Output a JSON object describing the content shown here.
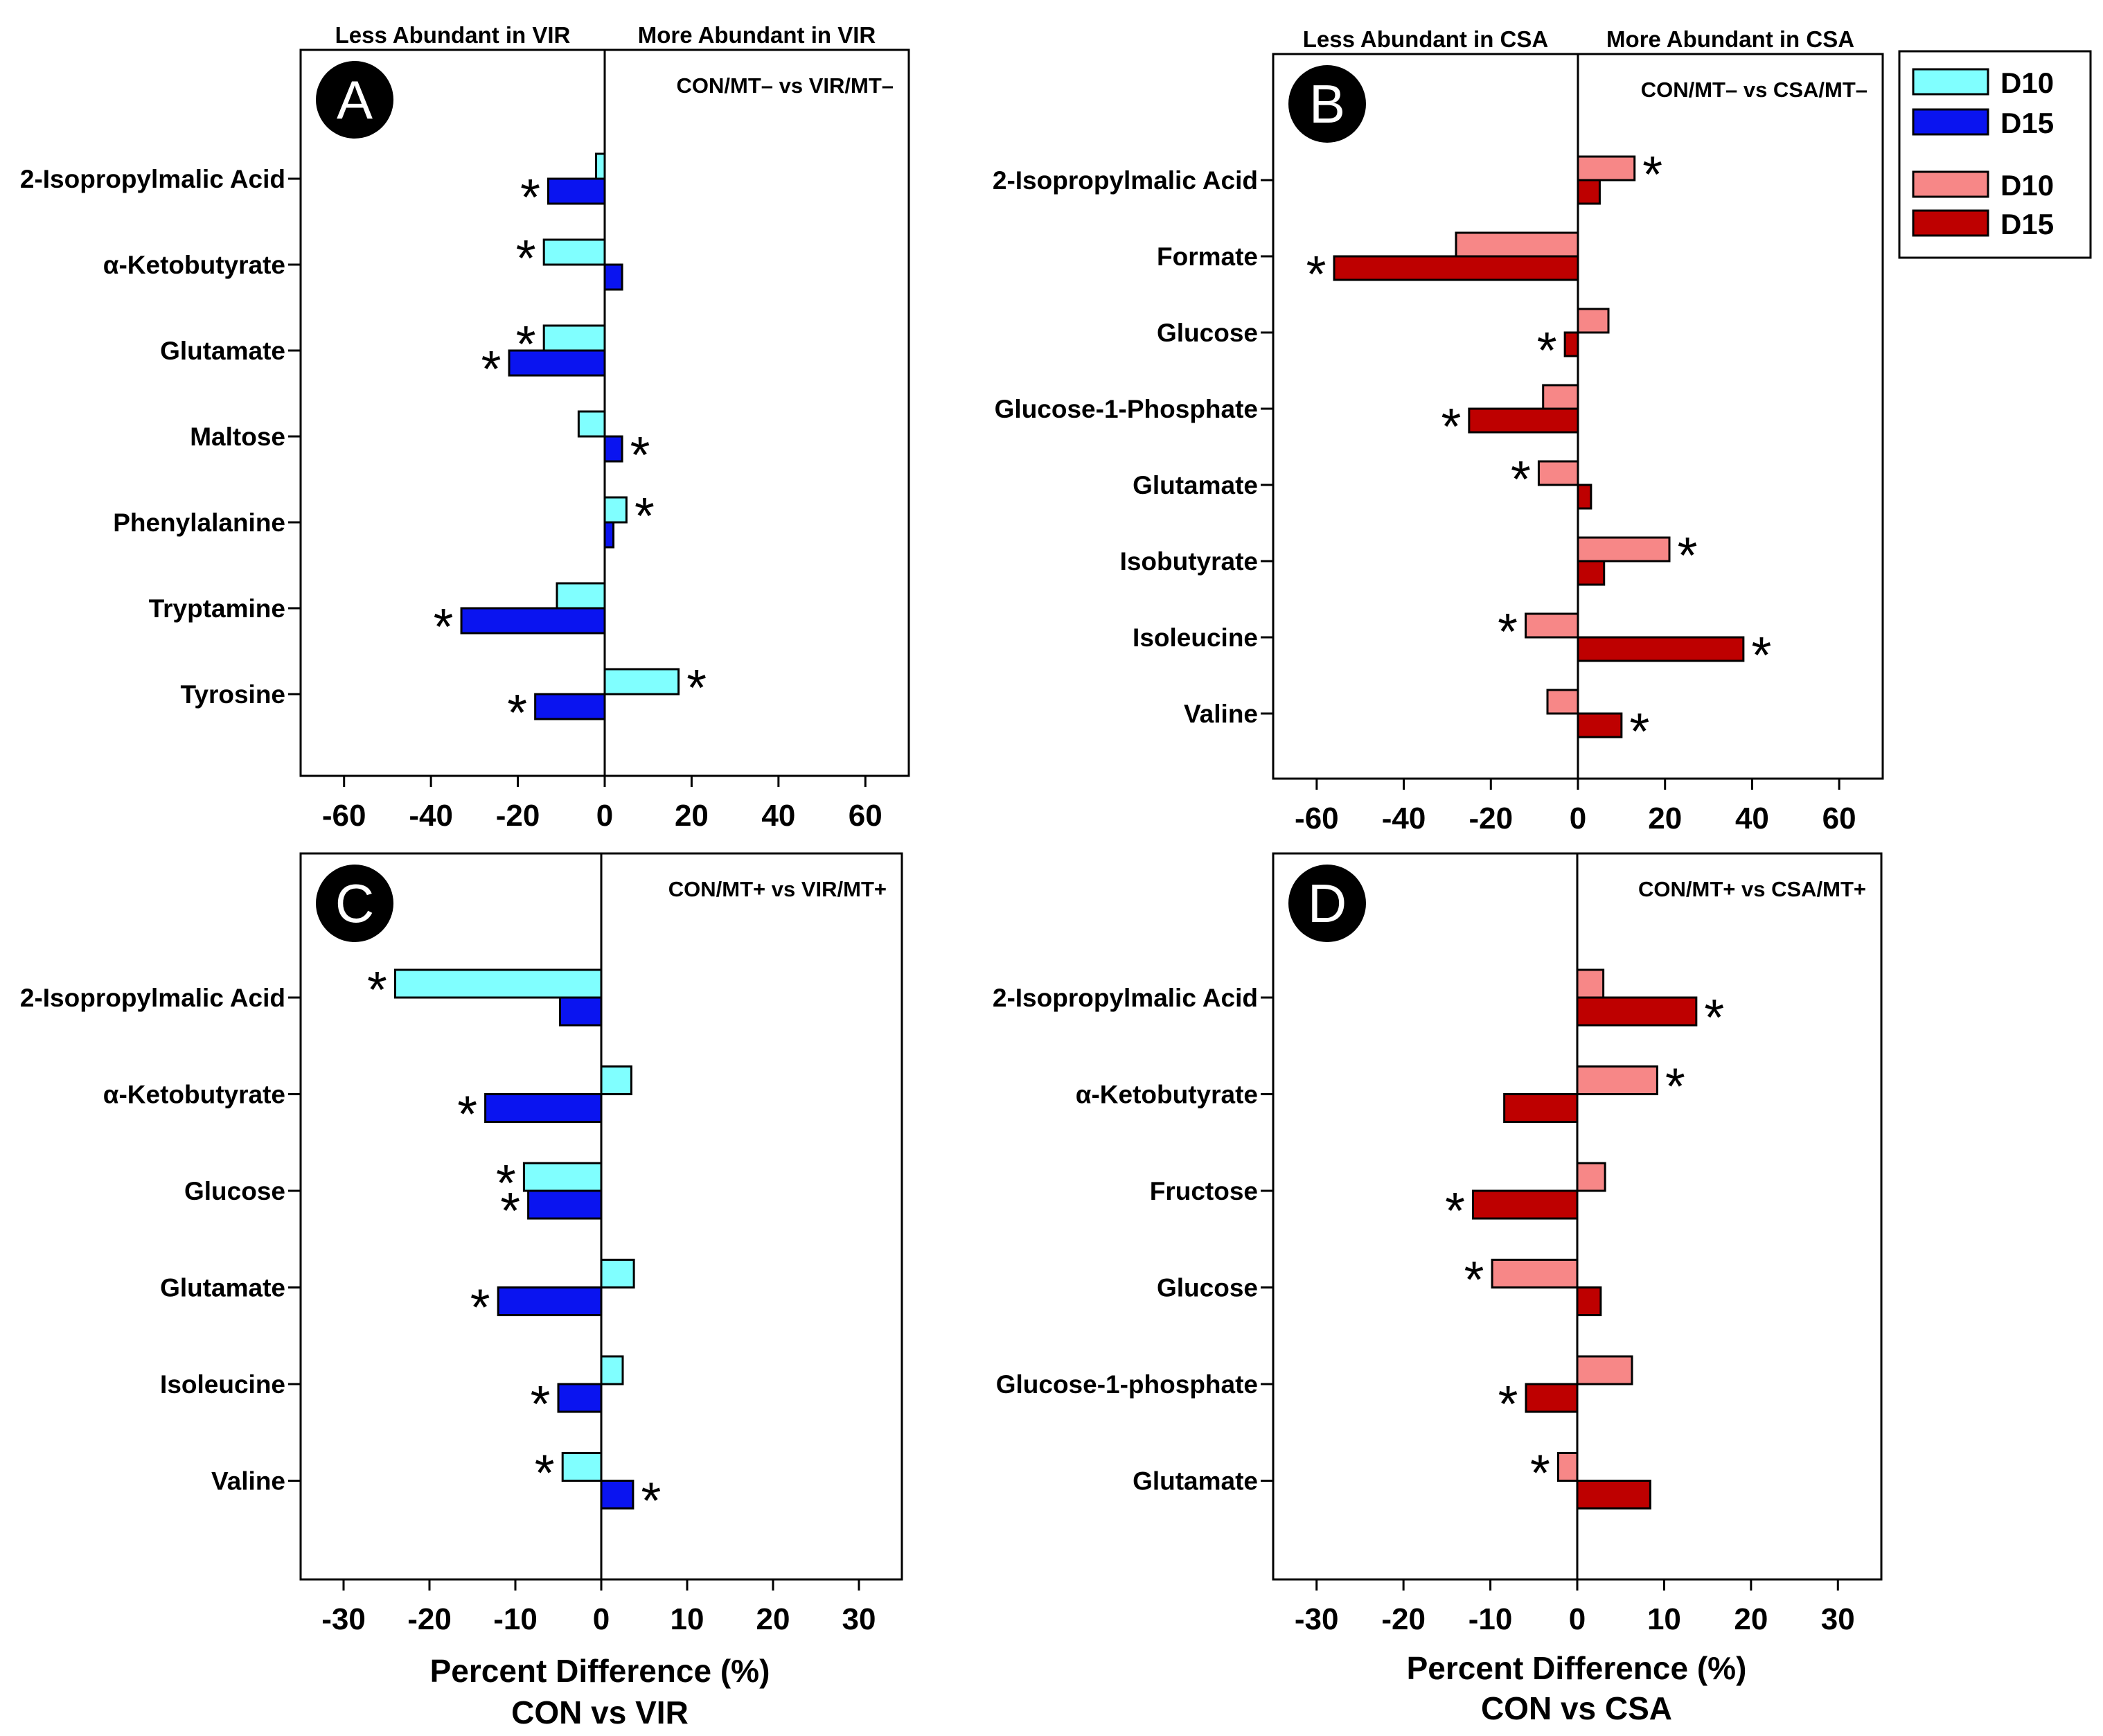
{
  "figure": {
    "legend": {
      "entries": [
        {
          "label": "D10",
          "color": "#80FFFF"
        },
        {
          "label": "D15",
          "color": "#0A14F0"
        },
        {
          "label": "D10",
          "color": "#F78787"
        },
        {
          "label": "D15",
          "color": "#BE0000"
        }
      ]
    },
    "bottom_left_xlabel": [
      "Percent Difference (%)",
      "CON vs VIR"
    ],
    "bottom_right_xlabel": [
      "Percent Difference (%)",
      "CON vs CSA"
    ],
    "star_glyph": "*"
  },
  "chart_data": [
    {
      "panel": "A",
      "type": "bar",
      "orientation": "horizontal",
      "comparison": "CON/MT– vs VIR/MT–",
      "header_left": "Less Abundant in VIR",
      "header_right": "More Abundant in VIR",
      "xlim": [
        -70,
        70
      ],
      "xticks": [
        -60,
        -40,
        -20,
        0,
        20,
        40,
        60
      ],
      "categories": [
        "2-Isopropylmalic Acid",
        "α-Ketobutyrate",
        "Glutamate",
        "Maltose",
        "Phenylalanine",
        "Tryptamine",
        "Tyrosine"
      ],
      "series": [
        {
          "name": "D10",
          "color": "#80FFFF",
          "values": [
            -2,
            -14,
            -14,
            -6,
            5,
            -11,
            17
          ],
          "significant": [
            false,
            true,
            true,
            false,
            true,
            false,
            true
          ]
        },
        {
          "name": "D15",
          "color": "#0A14F0",
          "values": [
            -13,
            4,
            -22,
            4,
            2,
            -33,
            -16
          ],
          "significant": [
            true,
            false,
            true,
            true,
            false,
            true,
            true
          ]
        }
      ]
    },
    {
      "panel": "B",
      "type": "bar",
      "orientation": "horizontal",
      "comparison": "CON/MT– vs CSA/MT–",
      "header_left": "Less Abundant in CSA",
      "header_right": "More Abundant in CSA",
      "xlim": [
        -70,
        70
      ],
      "xticks": [
        -60,
        -40,
        -20,
        0,
        20,
        40,
        60
      ],
      "categories": [
        "2-Isopropylmalic Acid",
        "Formate",
        "Glucose",
        "Glucose-1-Phosphate",
        "Glutamate",
        "Isobutyrate",
        "Isoleucine",
        "Valine"
      ],
      "series": [
        {
          "name": "D10",
          "color": "#F78787",
          "values": [
            13,
            -28,
            7,
            -8,
            -9,
            21,
            -12,
            -7
          ],
          "significant": [
            true,
            false,
            false,
            false,
            true,
            true,
            true,
            false
          ]
        },
        {
          "name": "D15",
          "color": "#BE0000",
          "values": [
            5,
            -56,
            -3,
            -25,
            3,
            6,
            38,
            10
          ],
          "significant": [
            false,
            true,
            true,
            true,
            false,
            false,
            true,
            true
          ]
        }
      ]
    },
    {
      "panel": "C",
      "type": "bar",
      "orientation": "horizontal",
      "comparison": "CON/MT+ vs VIR/MT+",
      "xlim": [
        -35,
        35
      ],
      "xticks": [
        -30,
        -20,
        -10,
        0,
        10,
        20,
        30
      ],
      "categories": [
        "2-Isopropylmalic Acid",
        "α-Ketobutyrate",
        "Glucose",
        "Glutamate",
        "Isoleucine",
        "Valine"
      ],
      "series": [
        {
          "name": "D10",
          "color": "#80FFFF",
          "values": [
            -24,
            3.5,
            -9,
            3.8,
            2.5,
            -4.5
          ],
          "significant": [
            true,
            false,
            true,
            false,
            false,
            true
          ]
        },
        {
          "name": "D15",
          "color": "#0A14F0",
          "values": [
            -4.8,
            -13.5,
            -8.5,
            -12,
            -5,
            3.7
          ],
          "significant": [
            false,
            true,
            true,
            true,
            true,
            true
          ]
        }
      ]
    },
    {
      "panel": "D",
      "type": "bar",
      "orientation": "horizontal",
      "comparison": "CON/MT+ vs CSA/MT+",
      "xlim": [
        -35,
        35
      ],
      "xticks": [
        -30,
        -20,
        -10,
        0,
        10,
        20,
        30
      ],
      "categories": [
        "2-Isopropylmalic Acid",
        "α-Ketobutyrate",
        "Fructose",
        "Glucose",
        "Glucose-1-phosphate",
        "Glutamate"
      ],
      "series": [
        {
          "name": "D10",
          "color": "#F78787",
          "values": [
            3,
            9.2,
            3.2,
            -9.8,
            6.3,
            -2.2
          ],
          "significant": [
            false,
            true,
            false,
            true,
            false,
            true
          ]
        },
        {
          "name": "D15",
          "color": "#BE0000",
          "values": [
            13.7,
            -8.4,
            -12,
            2.7,
            -5.9,
            8.4
          ],
          "significant": [
            true,
            false,
            true,
            false,
            true,
            false
          ]
        }
      ]
    }
  ]
}
